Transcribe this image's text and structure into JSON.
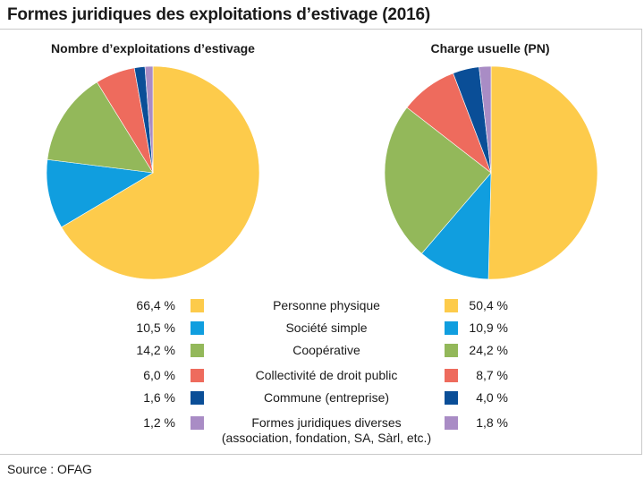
{
  "title": "Formes juridiques des exploitations d’estivage (2016)",
  "source": "Source : OFAG",
  "chart_data": [
    {
      "type": "pie",
      "title": "Nombre d’exploitations d’estivage",
      "categories": [
        "Personne physique",
        "Société simple",
        "Coopérative",
        "Collectivité de droit public",
        "Commune (entreprise)",
        "Formes juridiques diverses (association, fondation, SA, Sàrl, etc.)"
      ],
      "values": [
        66.4,
        10.5,
        14.2,
        6.0,
        1.6,
        1.2
      ],
      "labels": [
        "66,4 %",
        "10,5 %",
        "14,2 %",
        "6,0 %",
        "1,6 %",
        "1,2 %"
      ]
    },
    {
      "type": "pie",
      "title": "Charge usuelle (PN)",
      "categories": [
        "Personne physique",
        "Société simple",
        "Coopérative",
        "Collectivité de droit public",
        "Commune (entreprise)",
        "Formes juridiques diverses (association, fondation, SA, Sàrl, etc.)"
      ],
      "values": [
        50.4,
        10.9,
        24.2,
        8.7,
        4.0,
        1.8
      ],
      "labels": [
        "50,4 %",
        "10,9 %",
        "24,2 %",
        "8,7 %",
        "4,0 %",
        "1,8 %"
      ]
    }
  ],
  "legend": [
    {
      "label": "Personne physique",
      "label2": "",
      "color": "#FDCB4B"
    },
    {
      "label": "Société simple",
      "label2": "",
      "color": "#109EDF"
    },
    {
      "label": "Coopérative",
      "label2": "",
      "color": "#93B85A"
    },
    {
      "label": "Collectivité de droit public",
      "label2": "",
      "color": "#EE6B5D"
    },
    {
      "label": "Commune (entreprise)",
      "label2": "",
      "color": "#0A4E97"
    },
    {
      "label": "Formes juridiques diverses",
      "label2": "(association, fondation, SA, Sàrl, etc.)",
      "color": "#A98CC5"
    }
  ]
}
